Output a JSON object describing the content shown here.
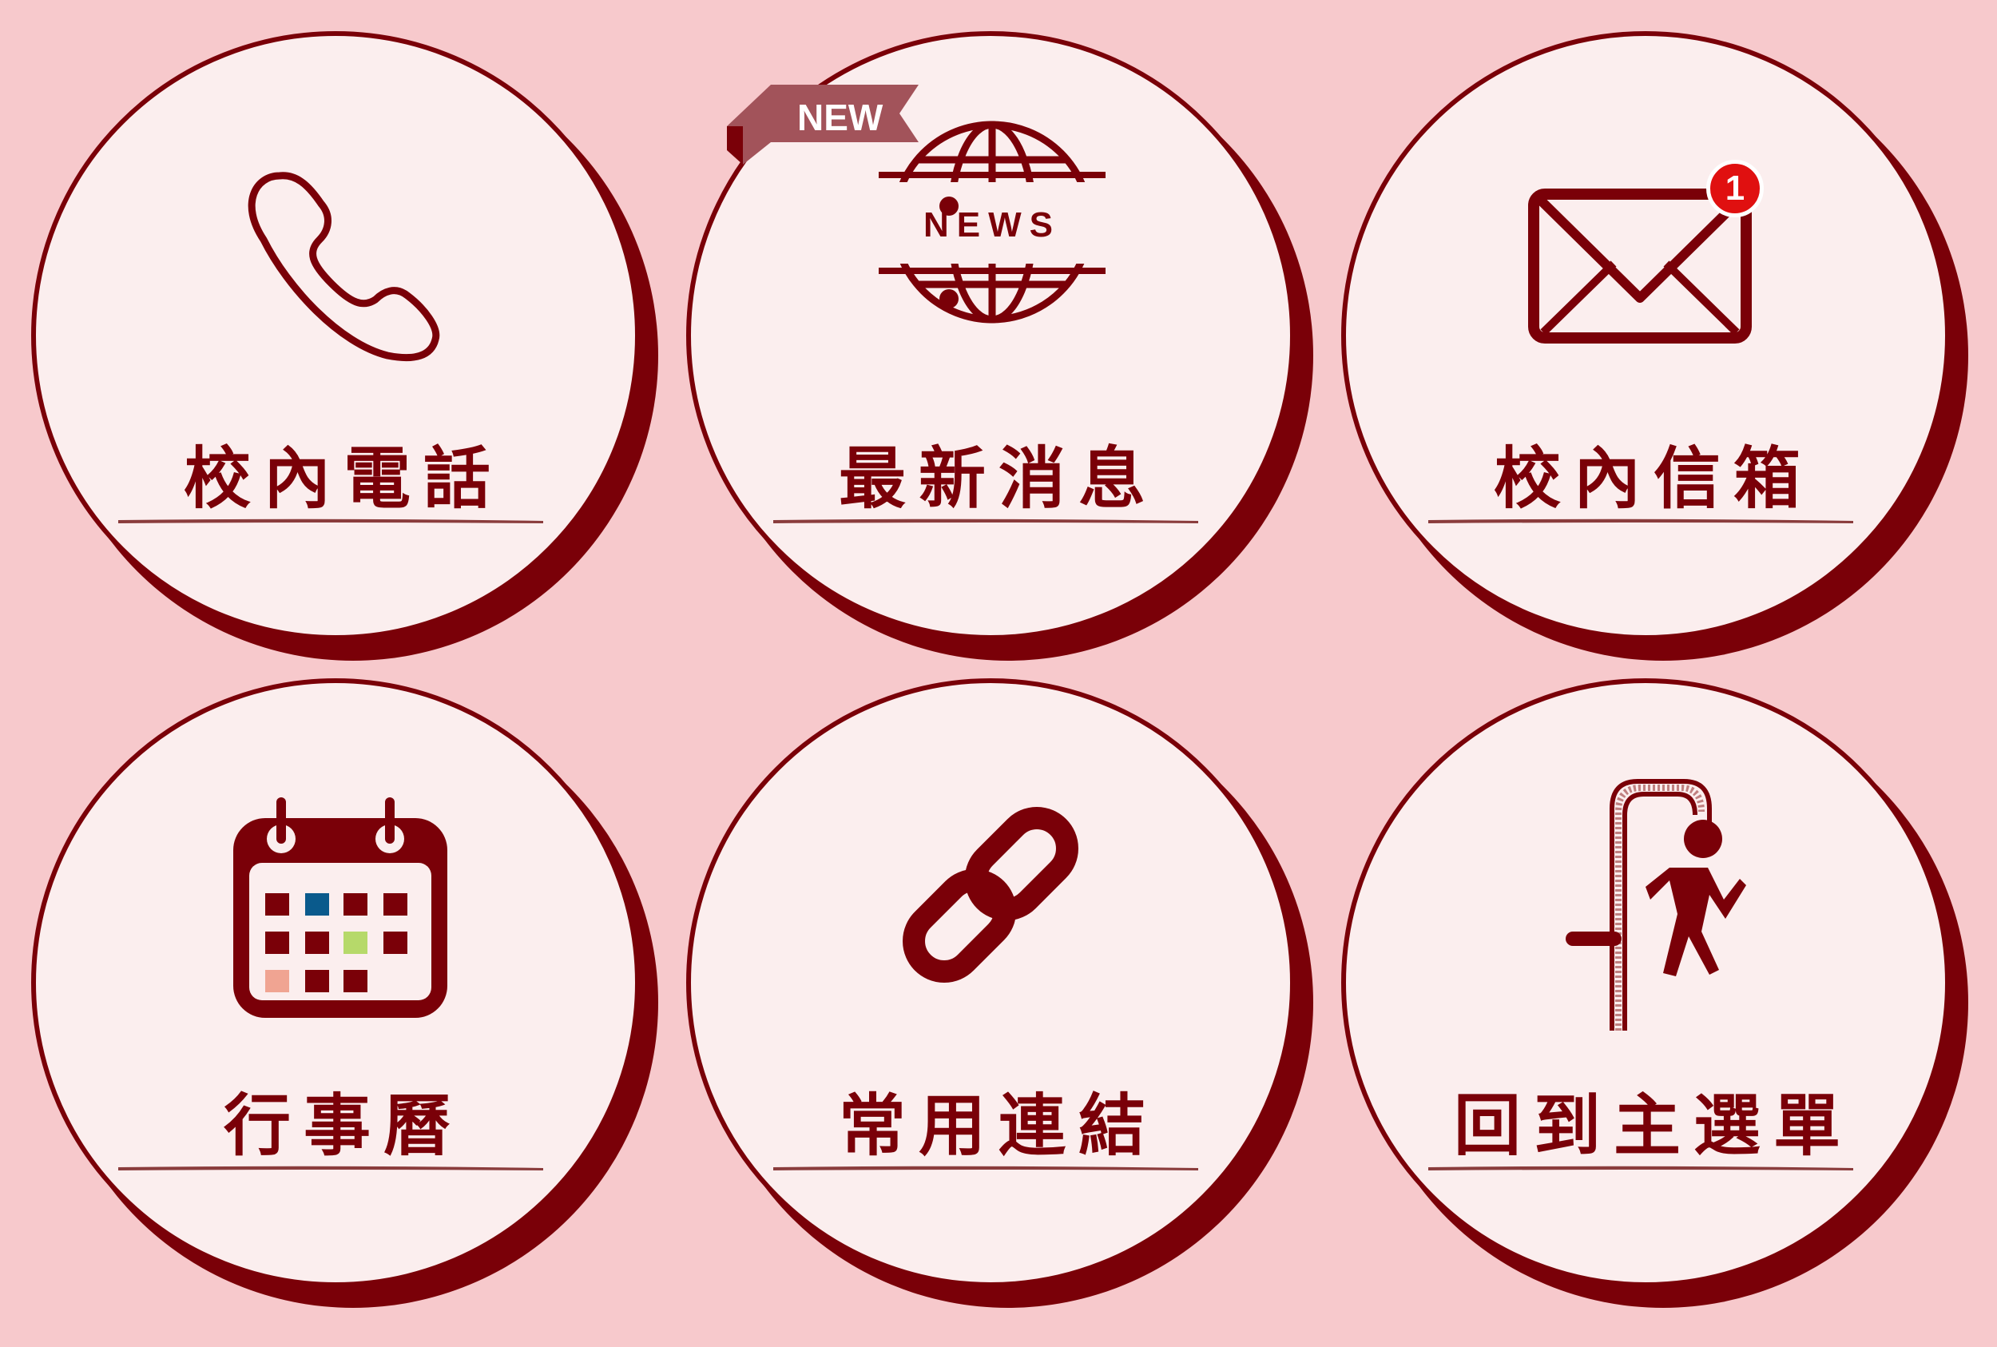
{
  "colors": {
    "background": "#f7c9cc",
    "circle_fill": "#fbeeee",
    "accent": "#7a0008",
    "ribbon": "#a2535a",
    "badge": "#e01010"
  },
  "tiles": [
    {
      "label": "校內電話",
      "icon": "phone-icon"
    },
    {
      "label": "最新消息",
      "icon": "news-globe-icon",
      "ribbon": "NEW",
      "icon_text": "NEWS"
    },
    {
      "label": "校內信箱",
      "icon": "mail-icon",
      "badge": "1"
    },
    {
      "label": "行事曆",
      "icon": "calendar-icon"
    },
    {
      "label": "常用連結",
      "icon": "link-icon"
    },
    {
      "label": "回到主選單",
      "icon": "exit-icon"
    }
  ]
}
